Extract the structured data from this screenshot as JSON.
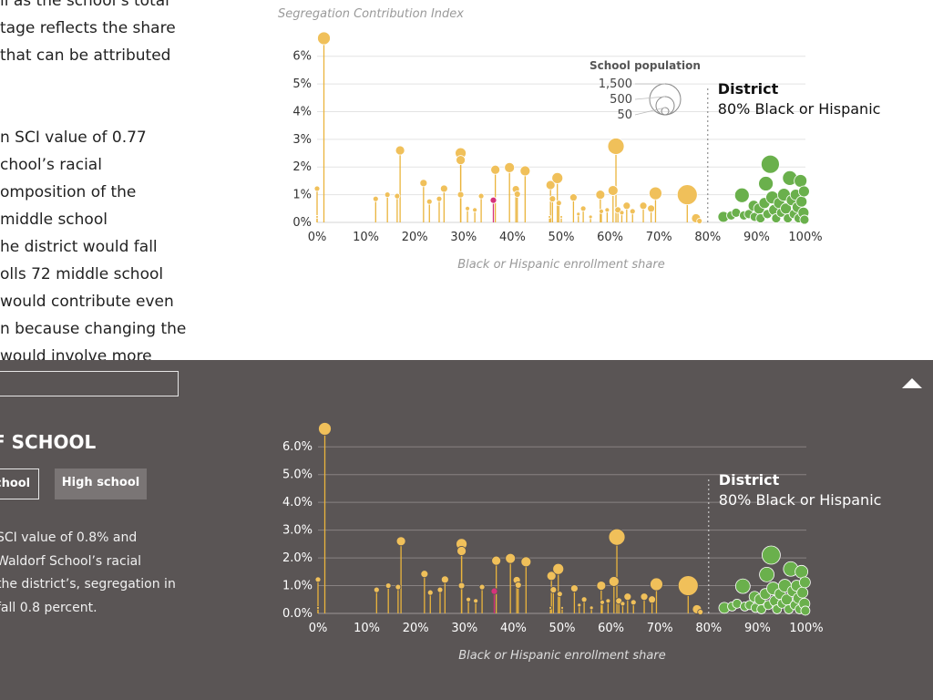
{
  "article": {
    "lines": [
      "ll as the school’s total",
      "tage reflects the share",
      " that can be attributed",
      "",
      "",
      "n SCI value of 0.77",
      "chool’s racial",
      "omposition of the",
      " middle school",
      "he district would fall",
      "olls 72 middle school",
      " would contribute even",
      "n because changing the",
      "would involve more"
    ]
  },
  "panel": {
    "search_value": "",
    "heading": "F SCHOOL",
    "buttons": {
      "middle": "chool",
      "high": "High school"
    },
    "text_lines": [
      "SCI value of 0.8% and",
      "Waldorf School’s racial",
      "the district’s, segregation in",
      "fall 0.8 percent."
    ]
  },
  "colors": {
    "majority_minority_fill": "#6ab04c",
    "other_fill": "#f0c05a",
    "stem": "#eab43c",
    "highlight": "#d6337a",
    "panel_bg": "#5a5555"
  },
  "chart_data": [
    {
      "type": "scatter",
      "title": "Segregation Contribution Index",
      "xlabel": "Black or Hispanic enrollment share",
      "ylabel": "",
      "xlim": [
        0,
        100
      ],
      "ylim": [
        0,
        6.5
      ],
      "x_ticks": [
        "0%",
        "10%",
        "20%",
        "30%",
        "40%",
        "50%",
        "60%",
        "70%",
        "80%",
        "90%",
        "100%"
      ],
      "y_ticks": [
        "0%",
        "1%",
        "2%",
        "3%",
        "4%",
        "5%",
        "6%"
      ],
      "grid": true,
      "district_marker": {
        "x": 80,
        "label": "District",
        "sublabel": "80% Black or Hispanic"
      },
      "size_legend": {
        "title": "School population",
        "values": [
          "1,500",
          "500",
          "50"
        ]
      }
    },
    {
      "type": "scatter",
      "title": "",
      "xlabel": "Black or Hispanic enrollment share",
      "ylabel": "",
      "xlim": [
        0,
        100
      ],
      "ylim": [
        0,
        6.5
      ],
      "x_ticks": [
        "0%",
        "10%",
        "20%",
        "30%",
        "40%",
        "50%",
        "60%",
        "70%",
        "80%",
        "90%",
        "100%"
      ],
      "y_ticks": [
        "0.0%",
        "1.0%",
        "2.0%",
        "3.0%",
        "4.0%",
        "5.0%",
        "6.0%"
      ],
      "grid": true,
      "district_marker": {
        "x": 80,
        "label": "District",
        "sublabel": "80% Black or Hispanic"
      }
    }
  ],
  "points": [
    {
      "x": 0.0,
      "y": 1.22,
      "r": 3
    },
    {
      "x": 0.0,
      "y": 0.2,
      "r": 1.5
    },
    {
      "x": 1.4,
      "y": 6.65,
      "r": 7
    },
    {
      "x": 12.0,
      "y": 0.85,
      "r": 3
    },
    {
      "x": 14.4,
      "y": 1.0,
      "r": 3
    },
    {
      "x": 16.4,
      "y": 0.95,
      "r": 3
    },
    {
      "x": 17.0,
      "y": 2.6,
      "r": 5
    },
    {
      "x": 21.8,
      "y": 1.42,
      "r": 4
    },
    {
      "x": 23.0,
      "y": 0.75,
      "r": 3
    },
    {
      "x": 25.0,
      "y": 0.85,
      "r": 3
    },
    {
      "x": 26.0,
      "y": 1.22,
      "r": 4
    },
    {
      "x": 29.4,
      "y": 2.5,
      "r": 6
    },
    {
      "x": 29.4,
      "y": 2.25,
      "r": 5
    },
    {
      "x": 29.4,
      "y": 1.0,
      "r": 3.5
    },
    {
      "x": 30.8,
      "y": 0.5,
      "r": 2.5
    },
    {
      "x": 32.3,
      "y": 0.45,
      "r": 2.5
    },
    {
      "x": 33.6,
      "y": 0.95,
      "r": 3
    },
    {
      "x": 36.1,
      "y": 0.8,
      "r": 3.5,
      "h": true
    },
    {
      "x": 36.5,
      "y": 1.9,
      "r": 5
    },
    {
      "x": 39.4,
      "y": 1.98,
      "r": 5.5
    },
    {
      "x": 40.7,
      "y": 1.2,
      "r": 4
    },
    {
      "x": 41.0,
      "y": 1.02,
      "r": 3.5
    },
    {
      "x": 42.6,
      "y": 1.86,
      "r": 5.5
    },
    {
      "x": 47.6,
      "y": 0.2,
      "r": 1.5
    },
    {
      "x": 47.8,
      "y": 1.35,
      "r": 5
    },
    {
      "x": 48.2,
      "y": 0.85,
      "r": 3.5
    },
    {
      "x": 49.2,
      "y": 1.6,
      "r": 6
    },
    {
      "x": 49.5,
      "y": 0.7,
      "r": 3
    },
    {
      "x": 50.0,
      "y": 0.2,
      "r": 1.5
    },
    {
      "x": 52.5,
      "y": 0.9,
      "r": 4
    },
    {
      "x": 53.5,
      "y": 0.3,
      "r": 2
    },
    {
      "x": 54.5,
      "y": 0.5,
      "r": 3
    },
    {
      "x": 56.0,
      "y": 0.2,
      "r": 2
    },
    {
      "x": 58.0,
      "y": 1.0,
      "r": 5
    },
    {
      "x": 58.2,
      "y": 0.4,
      "r": 2.5
    },
    {
      "x": 59.4,
      "y": 0.45,
      "r": 2.5
    },
    {
      "x": 60.6,
      "y": 1.15,
      "r": 5.5
    },
    {
      "x": 61.2,
      "y": 2.75,
      "r": 9
    },
    {
      "x": 61.6,
      "y": 0.45,
      "r": 3.5
    },
    {
      "x": 62.4,
      "y": 0.35,
      "r": 2.5
    },
    {
      "x": 63.4,
      "y": 0.6,
      "r": 4
    },
    {
      "x": 64.6,
      "y": 0.4,
      "r": 3
    },
    {
      "x": 66.8,
      "y": 0.6,
      "r": 4
    },
    {
      "x": 68.4,
      "y": 0.5,
      "r": 4
    },
    {
      "x": 69.3,
      "y": 1.05,
      "r": 7
    },
    {
      "x": 75.8,
      "y": 1.0,
      "r": 11
    },
    {
      "x": 77.6,
      "y": 0.15,
      "r": 5
    },
    {
      "x": 78.3,
      "y": 0.05,
      "r": 3
    },
    {
      "x": 83.2,
      "y": 0.2,
      "r": 6,
      "g": true
    },
    {
      "x": 84.8,
      "y": 0.25,
      "r": 5,
      "g": true
    },
    {
      "x": 85.8,
      "y": 0.35,
      "r": 5,
      "g": true
    },
    {
      "x": 87.0,
      "y": 0.98,
      "r": 8,
      "g": true
    },
    {
      "x": 87.4,
      "y": 0.25,
      "r": 5,
      "g": true
    },
    {
      "x": 88.4,
      "y": 0.3,
      "r": 5,
      "g": true
    },
    {
      "x": 89.4,
      "y": 0.6,
      "r": 6,
      "g": true
    },
    {
      "x": 89.6,
      "y": 0.2,
      "r": 5,
      "g": true
    },
    {
      "x": 90.5,
      "y": 0.5,
      "r": 6,
      "g": true
    },
    {
      "x": 90.8,
      "y": 0.15,
      "r": 5,
      "g": true
    },
    {
      "x": 91.6,
      "y": 0.7,
      "r": 6,
      "g": true
    },
    {
      "x": 91.9,
      "y": 1.4,
      "r": 8,
      "g": true
    },
    {
      "x": 92.2,
      "y": 0.3,
      "r": 5,
      "g": true
    },
    {
      "x": 92.8,
      "y": 2.1,
      "r": 10,
      "g": true
    },
    {
      "x": 93.2,
      "y": 0.9,
      "r": 7,
      "g": true
    },
    {
      "x": 93.6,
      "y": 0.45,
      "r": 6,
      "g": true
    },
    {
      "x": 94.0,
      "y": 0.15,
      "r": 5,
      "g": true
    },
    {
      "x": 94.6,
      "y": 0.7,
      "r": 6,
      "g": true
    },
    {
      "x": 95.0,
      "y": 0.35,
      "r": 5,
      "g": true
    },
    {
      "x": 95.6,
      "y": 1.0,
      "r": 7,
      "g": true
    },
    {
      "x": 96.0,
      "y": 0.5,
      "r": 6,
      "g": true
    },
    {
      "x": 96.4,
      "y": 0.15,
      "r": 5,
      "g": true
    },
    {
      "x": 96.8,
      "y": 1.6,
      "r": 8,
      "g": true
    },
    {
      "x": 97.2,
      "y": 0.8,
      "r": 6,
      "g": true
    },
    {
      "x": 97.6,
      "y": 0.3,
      "r": 5,
      "g": true
    },
    {
      "x": 98.0,
      "y": 1.0,
      "r": 6,
      "g": true
    },
    {
      "x": 98.4,
      "y": 0.55,
      "r": 6,
      "g": true
    },
    {
      "x": 98.6,
      "y": 0.15,
      "r": 5,
      "g": true
    },
    {
      "x": 99.0,
      "y": 1.5,
      "r": 7,
      "g": true
    },
    {
      "x": 99.2,
      "y": 0.75,
      "r": 6,
      "g": true
    },
    {
      "x": 99.6,
      "y": 0.35,
      "r": 6,
      "g": true
    },
    {
      "x": 99.7,
      "y": 1.12,
      "r": 6,
      "g": true
    },
    {
      "x": 99.8,
      "y": 0.1,
      "r": 5,
      "g": true
    }
  ]
}
